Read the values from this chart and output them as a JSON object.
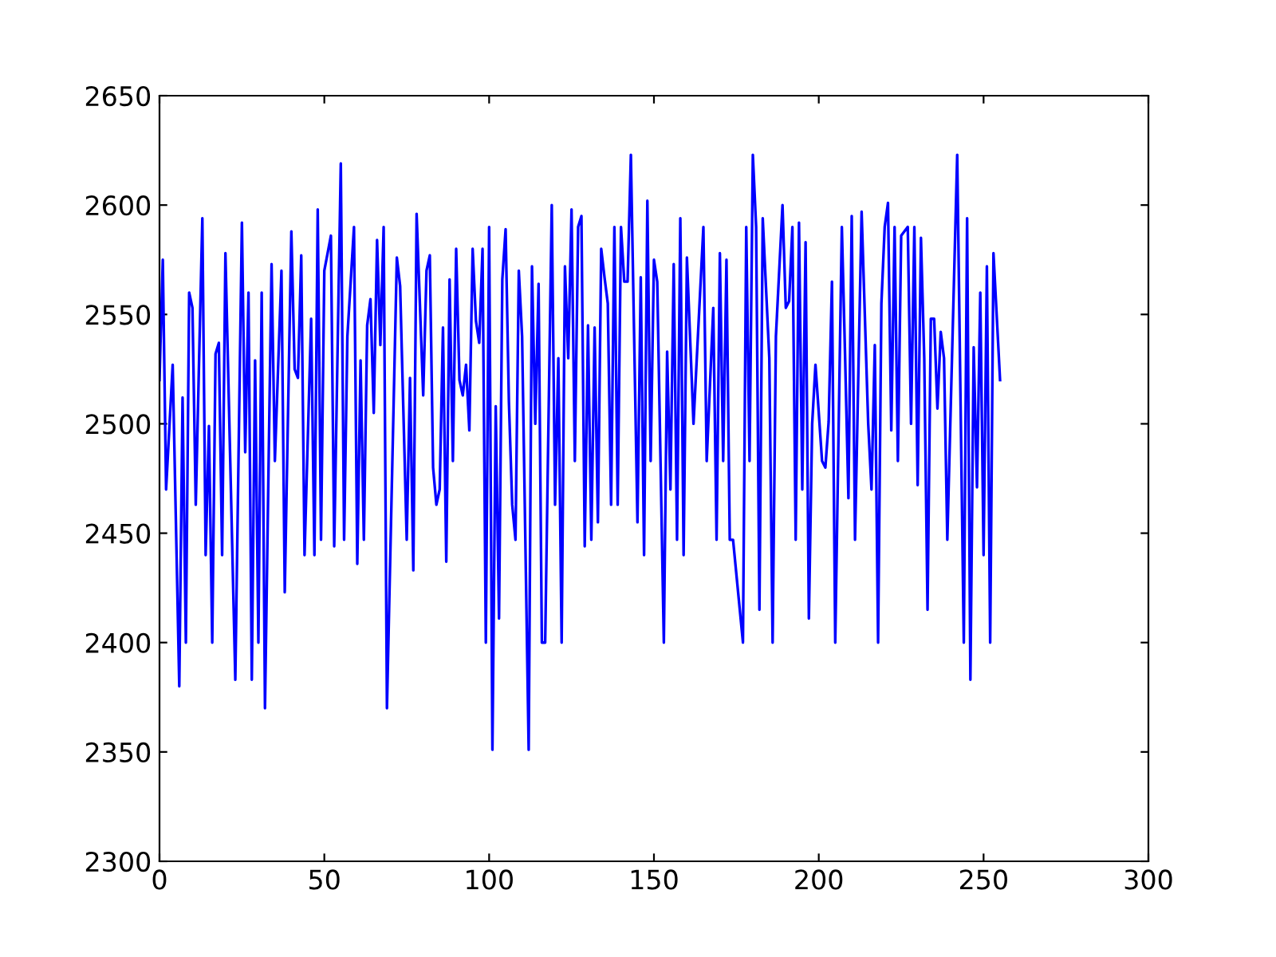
{
  "chart_data": {
    "type": "line",
    "xlim": [
      0,
      300
    ],
    "ylim": [
      2300,
      2650
    ],
    "xticks": [
      0,
      50,
      100,
      150,
      200,
      250,
      300
    ],
    "yticks": [
      2300,
      2350,
      2400,
      2450,
      2500,
      2550,
      2600,
      2650
    ],
    "grid": false,
    "series": [
      {
        "color": "#0000ff",
        "x": [
          0,
          1,
          2,
          4,
          6,
          7,
          8,
          9,
          10,
          11,
          13,
          14,
          15,
          16,
          17,
          18,
          19,
          20,
          23,
          25,
          26,
          27,
          28,
          29,
          30,
          31,
          32,
          34,
          35,
          37,
          38,
          40,
          41,
          42,
          43,
          44,
          46,
          47,
          48,
          49,
          50,
          52,
          53,
          55,
          56,
          57,
          59,
          60,
          61,
          62,
          63,
          64,
          65,
          66,
          67,
          68,
          69,
          72,
          73,
          75,
          76,
          77,
          78,
          80,
          81,
          82,
          83,
          84,
          85,
          86,
          87,
          88,
          89,
          90,
          91,
          92,
          93,
          94,
          95,
          96,
          97,
          98,
          99,
          100,
          101,
          102,
          103,
          104,
          105,
          106,
          107,
          108,
          109,
          110,
          112,
          113,
          114,
          115,
          116,
          117,
          119,
          120,
          121,
          122,
          123,
          124,
          125,
          126,
          127,
          128,
          129,
          130,
          131,
          132,
          133,
          134,
          135,
          136,
          137,
          138,
          139,
          140,
          141,
          142,
          143,
          145,
          146,
          147,
          148,
          149,
          150,
          151,
          153,
          154,
          155,
          156,
          157,
          158,
          159,
          160,
          162,
          165,
          166,
          168,
          169,
          170,
          171,
          172,
          173,
          174,
          177,
          178,
          179,
          180,
          181,
          182,
          183,
          185,
          186,
          187,
          189,
          190,
          191,
          192,
          193,
          194,
          195,
          196,
          197,
          198,
          199,
          201,
          202,
          203,
          204,
          205,
          207,
          208,
          209,
          210,
          211,
          213,
          215,
          216,
          217,
          218,
          219,
          220,
          221,
          222,
          223,
          224,
          225,
          227,
          228,
          229,
          230,
          231,
          232,
          233,
          234,
          235,
          236,
          237,
          238,
          239,
          242,
          244,
          245,
          246,
          247,
          248,
          249,
          250,
          251,
          252,
          253,
          255
        ],
        "values": [
          2520,
          2575,
          2470,
          2527,
          2380,
          2512,
          2400,
          2560,
          2553,
          2463,
          2594,
          2440,
          2499,
          2400,
          2532,
          2537,
          2440,
          2578,
          2383,
          2592,
          2487,
          2560,
          2383,
          2529,
          2400,
          2560,
          2370,
          2573,
          2483,
          2570,
          2423,
          2588,
          2525,
          2521,
          2577,
          2440,
          2548,
          2440,
          2598,
          2447,
          2570,
          2586,
          2444,
          2619,
          2447,
          2540,
          2590,
          2436,
          2529,
          2447,
          2545,
          2557,
          2505,
          2584,
          2536,
          2590,
          2370,
          2576,
          2563,
          2447,
          2521,
          2433,
          2596,
          2513,
          2570,
          2577,
          2480,
          2463,
          2470,
          2544,
          2437,
          2566,
          2483,
          2580,
          2520,
          2513,
          2527,
          2497,
          2580,
          2547,
          2537,
          2580,
          2400,
          2590,
          2351,
          2508,
          2411,
          2566,
          2589,
          2510,
          2463,
          2447,
          2570,
          2540,
          2351,
          2572,
          2500,
          2564,
          2400,
          2400,
          2600,
          2463,
          2530,
          2400,
          2572,
          2530,
          2598,
          2483,
          2590,
          2595,
          2444,
          2545,
          2447,
          2544,
          2455,
          2580,
          2567,
          2555,
          2463,
          2590,
          2463,
          2590,
          2565,
          2565,
          2623,
          2455,
          2567,
          2440,
          2602,
          2483,
          2575,
          2565,
          2400,
          2533,
          2470,
          2573,
          2447,
          2594,
          2440,
          2576,
          2500,
          2590,
          2483,
          2553,
          2447,
          2578,
          2483,
          2575,
          2447,
          2447,
          2400,
          2590,
          2483,
          2623,
          2590,
          2415,
          2594,
          2530,
          2400,
          2540,
          2600,
          2553,
          2556,
          2590,
          2447,
          2592,
          2470,
          2583,
          2411,
          2500,
          2527,
          2483,
          2480,
          2501,
          2565,
          2400,
          2590,
          2530,
          2466,
          2595,
          2447,
          2597,
          2500,
          2470,
          2536,
          2400,
          2555,
          2590,
          2601,
          2497,
          2590,
          2483,
          2586,
          2590,
          2500,
          2590,
          2472,
          2585,
          2530,
          2415,
          2548,
          2548,
          2507,
          2542,
          2530,
          2447,
          2623,
          2400,
          2594,
          2383,
          2535,
          2471,
          2560,
          2440,
          2572,
          2400,
          2578,
          2520
        ]
      }
    ]
  }
}
